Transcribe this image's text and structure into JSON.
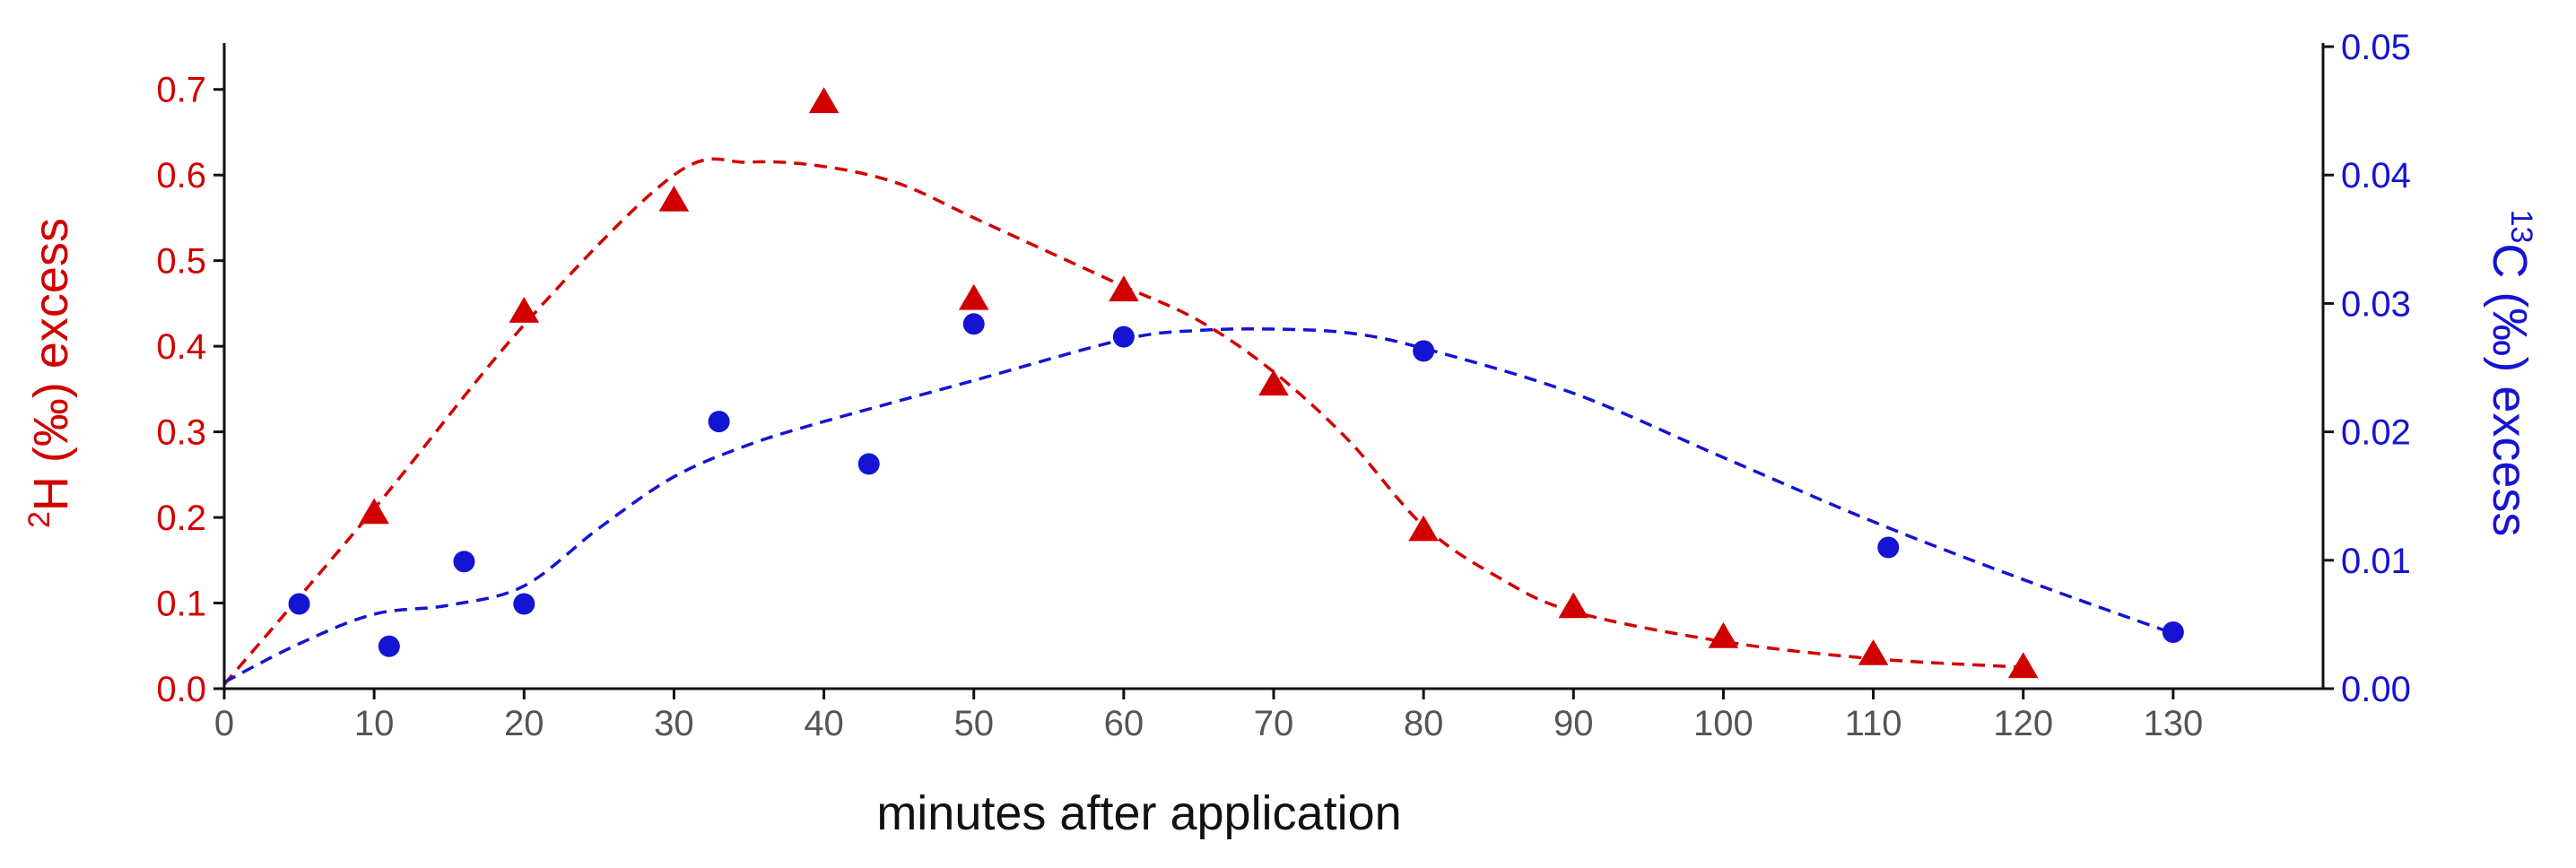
{
  "chart_data": {
    "type": "scatter",
    "title": "",
    "xlabel": "minutes after application",
    "ylabel_left": {
      "sup": "2",
      "text": "H (‰) excess"
    },
    "ylabel_right": {
      "sup": "13",
      "text": "C (‰) excess"
    },
    "xlim": [
      0,
      140
    ],
    "xticks": [
      0,
      10,
      20,
      30,
      40,
      50,
      60,
      70,
      80,
      90,
      100,
      110,
      120,
      130
    ],
    "ylim_left": [
      0,
      0.75
    ],
    "yticks_left": [
      "0.0",
      "0.1",
      "0.2",
      "0.3",
      "0.4",
      "0.5",
      "0.6",
      "0.7"
    ],
    "ylim_right": [
      0,
      0.05
    ],
    "yticks_right": [
      "0.00",
      "0.01",
      "0.02",
      "0.03",
      "0.04",
      "0.05"
    ],
    "grid": false,
    "colors": {
      "h2": "#d10000",
      "c13": "#1414d2",
      "axis": "#111111"
    },
    "series": [
      {
        "marker": "triangle",
        "axis": "left",
        "color": "#d10000",
        "points": [
          [
            10,
            0.205
          ],
          [
            20,
            0.44
          ],
          [
            30,
            0.57
          ],
          [
            40,
            0.685
          ],
          [
            50,
            0.455
          ],
          [
            60,
            0.465
          ],
          [
            70,
            0.355
          ],
          [
            80,
            0.185
          ],
          [
            90,
            0.095
          ],
          [
            100,
            0.06
          ],
          [
            110,
            0.04
          ],
          [
            120,
            0.025
          ]
        ],
        "trend": [
          [
            0,
            0.005
          ],
          [
            10,
            0.21
          ],
          [
            20,
            0.425
          ],
          [
            30,
            0.6
          ],
          [
            35,
            0.615
          ],
          [
            40,
            0.61
          ],
          [
            45,
            0.59
          ],
          [
            50,
            0.55
          ],
          [
            55,
            0.51
          ],
          [
            60,
            0.47
          ],
          [
            65,
            0.43
          ],
          [
            70,
            0.37
          ],
          [
            75,
            0.29
          ],
          [
            80,
            0.19
          ],
          [
            85,
            0.13
          ],
          [
            90,
            0.09
          ],
          [
            100,
            0.055
          ],
          [
            110,
            0.035
          ],
          [
            120,
            0.025
          ]
        ]
      },
      {
        "marker": "circle",
        "axis": "right",
        "color": "#1414d2",
        "points": [
          [
            5,
            0.0066
          ],
          [
            11,
            0.0033
          ],
          [
            16,
            0.0099
          ],
          [
            20,
            0.0066
          ],
          [
            33,
            0.0208
          ],
          [
            43,
            0.0175
          ],
          [
            50,
            0.0284
          ],
          [
            60,
            0.0274
          ],
          [
            80,
            0.0263
          ],
          [
            111,
            0.011
          ],
          [
            130,
            0.0044
          ]
        ],
        "trend": [
          [
            0,
            0.0005
          ],
          [
            5,
            0.0035
          ],
          [
            10,
            0.0058
          ],
          [
            15,
            0.0065
          ],
          [
            20,
            0.008
          ],
          [
            25,
            0.0125
          ],
          [
            30,
            0.0165
          ],
          [
            35,
            0.019
          ],
          [
            40,
            0.0208
          ],
          [
            50,
            0.024
          ],
          [
            60,
            0.0272
          ],
          [
            65,
            0.0279
          ],
          [
            70,
            0.028
          ],
          [
            75,
            0.0277
          ],
          [
            80,
            0.0265
          ],
          [
            90,
            0.023
          ],
          [
            100,
            0.018
          ],
          [
            110,
            0.013
          ],
          [
            120,
            0.0085
          ],
          [
            130,
            0.0043
          ]
        ]
      }
    ]
  }
}
